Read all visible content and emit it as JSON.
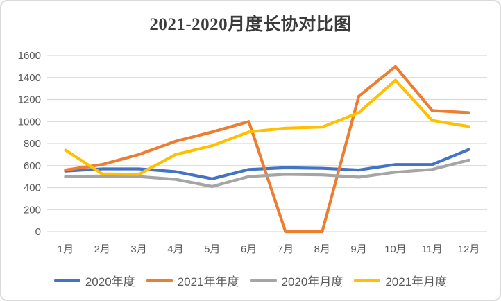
{
  "card": {
    "background": "#ffffff",
    "border_color": "#d9d9d9"
  },
  "chart_data": {
    "type": "line",
    "title": "2021-2020月度长协对比图",
    "categories": [
      "1月",
      "2月",
      "3月",
      "4月",
      "5月",
      "6月",
      "7月",
      "8月",
      "9月",
      "10月",
      "11月",
      "12月"
    ],
    "series": [
      {
        "name": "2020年度",
        "color": "#4472C4",
        "values": [
          550,
          570,
          570,
          545,
          480,
          565,
          580,
          575,
          560,
          610,
          610,
          745
        ]
      },
      {
        "name": "2021年年度",
        "color": "#ED7D31",
        "values": [
          560,
          610,
          700,
          820,
          905,
          1000,
          0,
          0,
          1230,
          1500,
          1100,
          1080
        ]
      },
      {
        "name": "2020年月度",
        "color": "#A5A5A5",
        "values": [
          500,
          505,
          500,
          475,
          410,
          500,
          520,
          515,
          495,
          540,
          565,
          650
        ]
      },
      {
        "name": "2021年月度",
        "color": "#FFC000",
        "values": [
          740,
          525,
          520,
          700,
          780,
          905,
          940,
          950,
          1080,
          1375,
          1010,
          955
        ]
      }
    ],
    "y_axis": {
      "min": 0,
      "max": 1600,
      "step": 200,
      "tick_labels": [
        "0",
        "200",
        "400",
        "600",
        "800",
        "1000",
        "1200",
        "1400",
        "1600"
      ]
    },
    "x_axis_label": "",
    "y_axis_label": "",
    "grid": "horizontal-only",
    "gridline_color": "#d9d9d9",
    "tick_label_color": "#595959",
    "legend_position": "bottom"
  }
}
